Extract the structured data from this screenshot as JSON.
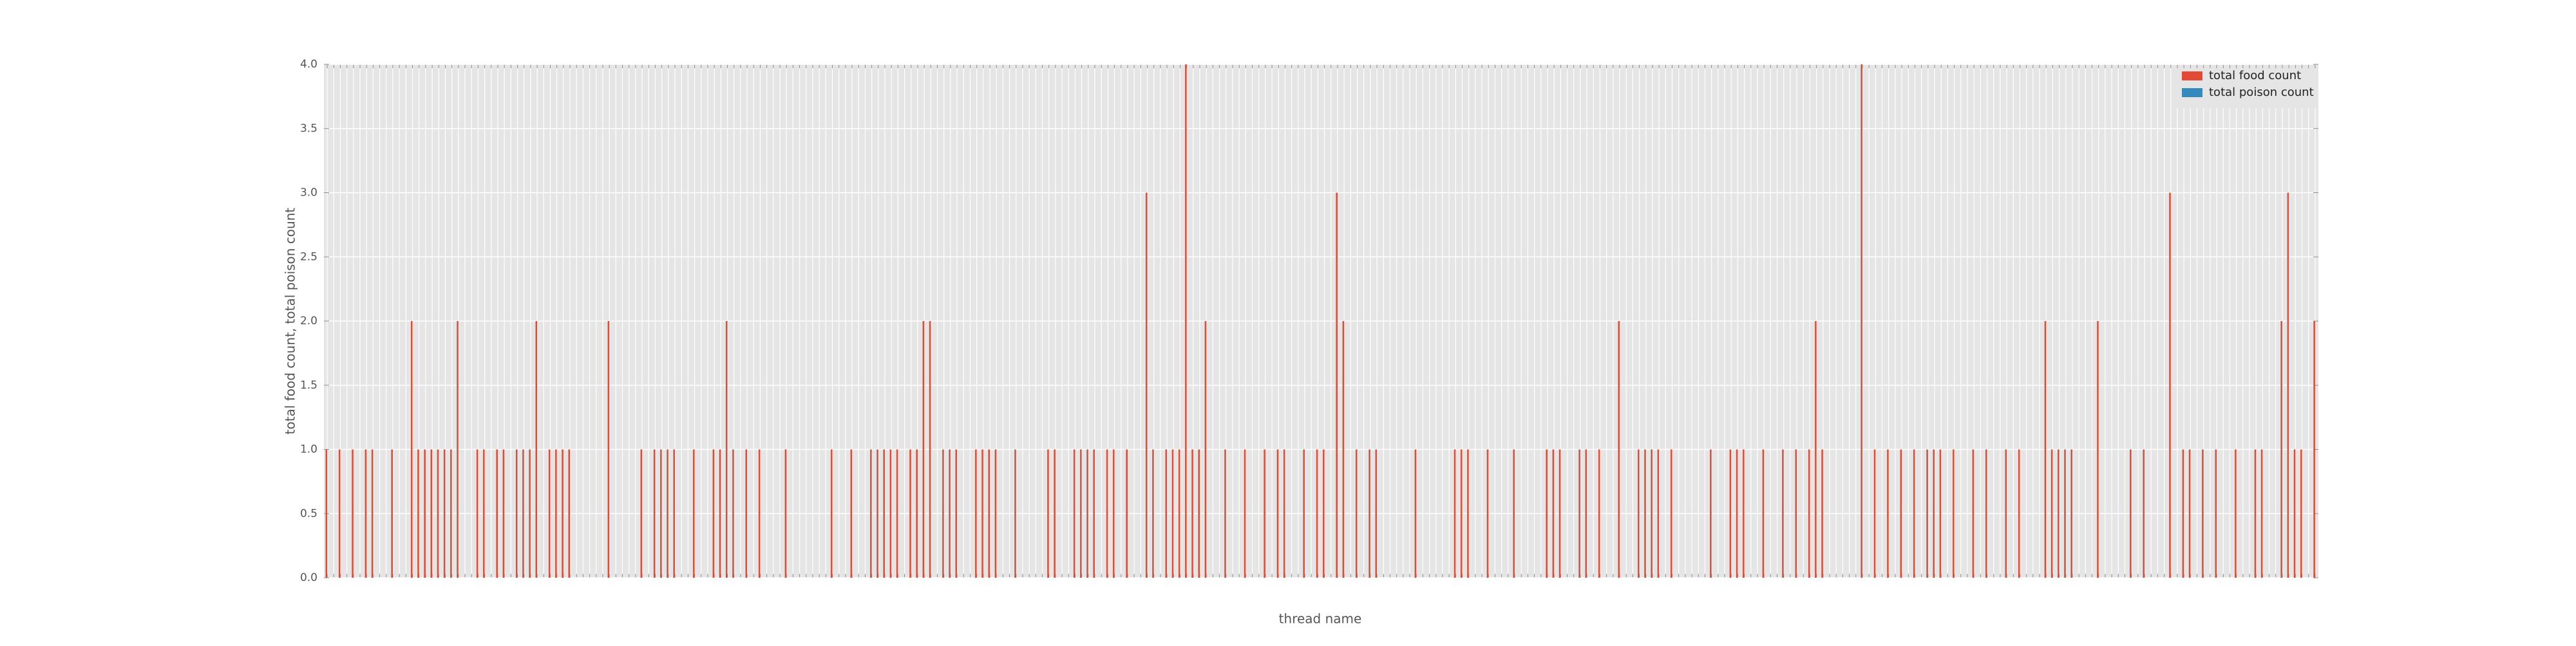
{
  "chart_data": {
    "type": "bar",
    "xlabel": "thread name",
    "ylabel": "total food count, total poison count",
    "categories": [
      null,
      null,
      null,
      null,
      null,
      null,
      null,
      null,
      null,
      null,
      null,
      null,
      null,
      null,
      null,
      null,
      null,
      null,
      null,
      null,
      null,
      null,
      null,
      null,
      null,
      null,
      null,
      null,
      null,
      null,
      null,
      null,
      null,
      null,
      null,
      null,
      null,
      null,
      null,
      null,
      null,
      null,
      null,
      null,
      null,
      null,
      null,
      null,
      null,
      null,
      null,
      null,
      null,
      null,
      null,
      null,
      null,
      null,
      null,
      null,
      null,
      null,
      null,
      null,
      null,
      null,
      null,
      null,
      null,
      null,
      null,
      null,
      null,
      null,
      null,
      null,
      null,
      null,
      null,
      null,
      null,
      null,
      null,
      null,
      null,
      null,
      null,
      null,
      null,
      null,
      null,
      null,
      null,
      null,
      null,
      null,
      null,
      null,
      null,
      null,
      null,
      null,
      null,
      null,
      null,
      null,
      null,
      null,
      null,
      null,
      null,
      null,
      null,
      null,
      null,
      null,
      null,
      null,
      null,
      null,
      null,
      null,
      null,
      null,
      null,
      null,
      null,
      null,
      null,
      null,
      null,
      null,
      null,
      null,
      null,
      null,
      null,
      null,
      null,
      null,
      null,
      null,
      null,
      null,
      null,
      null,
      null,
      null,
      null,
      null,
      null,
      null,
      null,
      null,
      null,
      null,
      null,
      null,
      null,
      null,
      null,
      null,
      null,
      null,
      null,
      null,
      null,
      null,
      null,
      null,
      null,
      null,
      null,
      null,
      null,
      null,
      null,
      null,
      null,
      null,
      null,
      null,
      null,
      null,
      null,
      null,
      null,
      null,
      null,
      null,
      null,
      null,
      null,
      null,
      null,
      null,
      null,
      null,
      null,
      null,
      null,
      null,
      null,
      null,
      null,
      null,
      null,
      null,
      null,
      null,
      null,
      null,
      null,
      null,
      null,
      null,
      null,
      null,
      null,
      null,
      null,
      null,
      null,
      null,
      null,
      null,
      null,
      null,
      null,
      null,
      null,
      null,
      null,
      null,
      null,
      null,
      null,
      null,
      null,
      null,
      null,
      null,
      null,
      null,
      null,
      null,
      null,
      null,
      null,
      null,
      null,
      null,
      null,
      null,
      null,
      null,
      null,
      null,
      null,
      null,
      null,
      null,
      null,
      null,
      null,
      null,
      null,
      null,
      null,
      null,
      null,
      null,
      null,
      null,
      null,
      null,
      null,
      null,
      null,
      null,
      null,
      null,
      null,
      null,
      null,
      null,
      null,
      null,
      null,
      null,
      null,
      null,
      null,
      null,
      null,
      null,
      null,
      null,
      null,
      null,
      null,
      null,
      null,
      null
    ],
    "series": [
      {
        "name": "total food count",
        "color": "#e24a33",
        "values": [
          1,
          0,
          1,
          0,
          1,
          0,
          1,
          1,
          0,
          0,
          1,
          0,
          0,
          2,
          1,
          1,
          1,
          1,
          1,
          1,
          2,
          0,
          0,
          1,
          1,
          0,
          1,
          1,
          0,
          1,
          1,
          1,
          2,
          0,
          1,
          1,
          1,
          1,
          0,
          0,
          0,
          0,
          0,
          2,
          0,
          0,
          0,
          0,
          1,
          0,
          1,
          1,
          1,
          1,
          0,
          0,
          1,
          0,
          0,
          1,
          1,
          2,
          1,
          0,
          1,
          0,
          1,
          0,
          0,
          0,
          1,
          0,
          0,
          0,
          0,
          0,
          0,
          1,
          0,
          0,
          1,
          0,
          0,
          1,
          1,
          1,
          1,
          1,
          0,
          1,
          1,
          2,
          2,
          0,
          1,
          1,
          1,
          0,
          0,
          1,
          1,
          1,
          1,
          0,
          0,
          1,
          0,
          0,
          0,
          0,
          1,
          1,
          0,
          0,
          1,
          1,
          1,
          1,
          0,
          1,
          1,
          0,
          1,
          0,
          0,
          3,
          1,
          0,
          1,
          1,
          1,
          4,
          1,
          1,
          2,
          0,
          0,
          1,
          0,
          0,
          1,
          0,
          0,
          1,
          0,
          1,
          1,
          0,
          0,
          1,
          0,
          1,
          1,
          0,
          3,
          2,
          0,
          1,
          0,
          1,
          1,
          0,
          0,
          0,
          0,
          0,
          1,
          0,
          0,
          0,
          0,
          0,
          1,
          1,
          1,
          0,
          0,
          1,
          0,
          0,
          0,
          1,
          0,
          0,
          0,
          0,
          1,
          1,
          1,
          0,
          0,
          1,
          1,
          0,
          1,
          0,
          0,
          2,
          0,
          0,
          1,
          1,
          1,
          1,
          0,
          1,
          0,
          0,
          0,
          0,
          0,
          1,
          0,
          0,
          1,
          1,
          1,
          0,
          0,
          1,
          0,
          0,
          1,
          0,
          1,
          0,
          1,
          2,
          1,
          0,
          0,
          0,
          0,
          0,
          4,
          0,
          1,
          0,
          1,
          0,
          1,
          0,
          1,
          0,
          1,
          1,
          1,
          0,
          1,
          0,
          0,
          1,
          0,
          1,
          0,
          0,
          1,
          0,
          1,
          0,
          0,
          0,
          2,
          1,
          1,
          1,
          1,
          0,
          0,
          0,
          2,
          0,
          0,
          0,
          0,
          1,
          0,
          1,
          0,
          0,
          0,
          3,
          0,
          1,
          1,
          0,
          1,
          0,
          1,
          0,
          0,
          1,
          0,
          0,
          1,
          1,
          0,
          0,
          2,
          3,
          1,
          1,
          0,
          2
        ]
      },
      {
        "name": "total poison count",
        "color": "#348abd",
        "values": [
          0,
          0,
          0,
          0,
          0,
          0,
          0,
          0,
          0,
          0,
          0,
          0,
          0,
          0,
          0,
          0,
          0,
          0,
          0,
          0,
          0,
          0,
          0,
          0,
          0,
          0,
          0,
          0,
          0,
          0,
          0,
          0,
          0,
          0,
          0,
          0,
          0,
          0,
          0,
          0,
          0,
          0,
          0,
          0,
          0,
          0,
          0,
          0,
          0,
          0,
          0,
          0,
          0,
          0,
          0,
          0,
          0,
          0,
          0,
          0,
          0,
          0,
          0,
          0,
          0,
          0,
          0,
          0,
          0,
          0,
          0,
          0,
          0,
          0,
          0,
          0,
          0,
          0,
          0,
          0,
          0,
          0,
          0,
          0,
          0,
          0,
          0,
          0,
          0,
          0,
          0,
          0,
          0,
          0,
          0,
          0,
          0,
          0,
          0,
          0,
          0,
          0,
          0,
          0,
          0,
          0,
          0,
          0,
          0,
          0,
          0,
          0,
          0,
          0,
          0,
          0,
          0,
          0,
          0,
          0,
          0,
          0,
          0,
          0,
          0,
          0,
          0,
          0,
          0,
          0,
          0,
          0,
          0,
          0,
          0,
          0,
          0,
          0,
          0,
          0,
          0,
          0,
          0,
          0,
          0,
          0,
          0,
          0,
          0,
          0,
          0,
          0,
          0,
          0,
          0,
          0,
          0,
          0,
          0,
          0,
          0,
          0,
          0,
          0,
          0,
          0,
          0,
          0,
          0,
          0,
          0,
          0,
          0,
          0,
          0,
          0,
          0,
          0,
          0,
          0,
          0,
          0,
          0,
          0,
          0,
          0,
          0,
          0,
          0,
          0,
          0,
          0,
          0,
          0,
          0,
          0,
          0,
          0,
          0,
          0,
          0,
          0,
          0,
          0,
          0,
          0,
          0,
          0,
          0,
          0,
          0,
          0,
          0,
          0,
          0,
          0,
          0,
          0,
          0,
          0,
          0,
          0,
          0,
          0,
          0,
          0,
          0,
          0,
          0,
          0,
          0,
          0,
          0,
          0,
          0,
          0,
          0,
          0,
          0,
          0,
          0,
          0,
          0,
          0,
          0,
          0,
          0,
          0,
          0,
          0,
          0,
          0,
          0,
          0,
          0,
          0,
          0,
          0,
          0,
          0,
          0,
          0,
          0,
          0,
          0,
          0,
          0,
          0,
          0,
          0,
          0,
          0,
          0,
          0,
          0,
          0,
          0,
          0,
          0,
          0,
          0,
          0,
          0,
          0,
          0,
          0,
          0,
          0,
          0,
          0,
          0,
          0,
          0,
          0,
          0,
          0,
          0,
          0,
          0,
          0,
          0,
          0,
          0,
          0
        ]
      }
    ],
    "ylim": [
      0,
      4
    ],
    "yticks": [
      {
        "value": 0,
        "label": "0.0"
      },
      {
        "value": 0.5,
        "label": "0.5"
      },
      {
        "value": 1,
        "label": "1.0"
      },
      {
        "value": 1.5,
        "label": "1.5"
      },
      {
        "value": 2,
        "label": "2.0"
      },
      {
        "value": 2.5,
        "label": "2.5"
      },
      {
        "value": 3,
        "label": "3.0"
      },
      {
        "value": 3.5,
        "label": "3.5"
      },
      {
        "value": 4,
        "label": "4.0"
      }
    ],
    "grid": true,
    "legend": "upper right"
  }
}
